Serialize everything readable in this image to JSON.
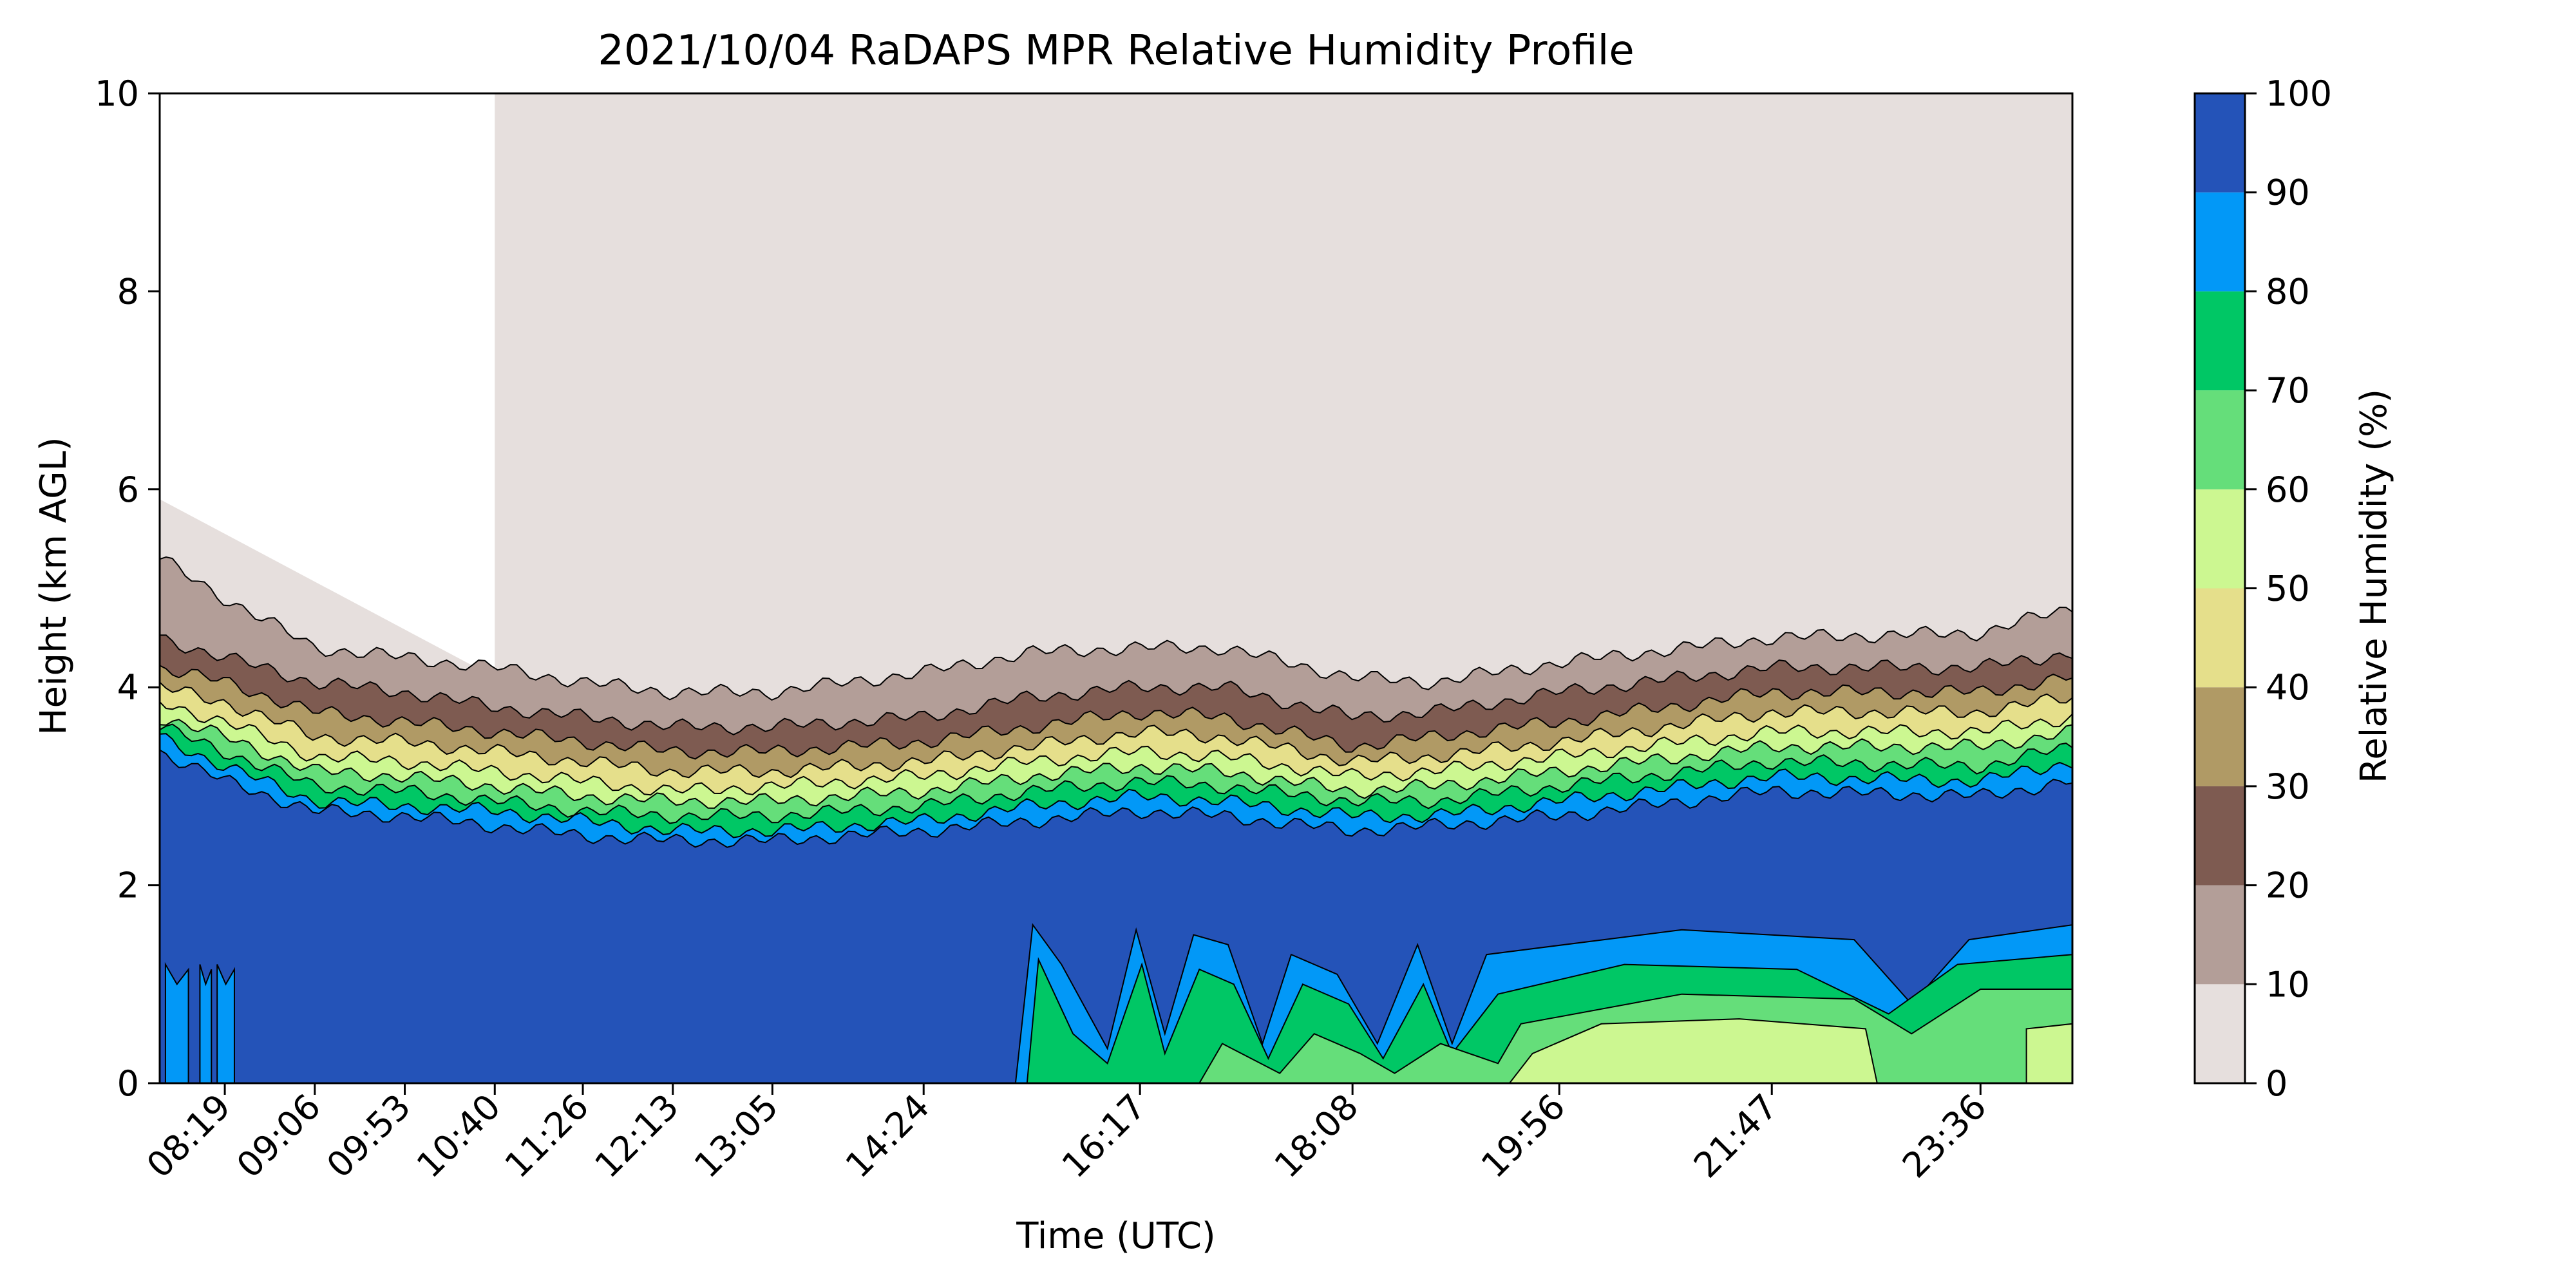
{
  "chart_data": {
    "type": "contourf",
    "title": "2021/10/04 RaDAPS MPR Relative Humidity Profile",
    "xlabel": "Time (UTC)",
    "ylabel": "Height (km AGL)",
    "xlim": [
      "07:45",
      "24:24"
    ],
    "ylim": [
      0,
      10
    ],
    "x_ticks": [
      "08:19",
      "09:06",
      "09:53",
      "10:40",
      "11:26",
      "12:13",
      "13:05",
      "14:24",
      "16:17",
      "18:08",
      "19:56",
      "21:47",
      "23:36"
    ],
    "y_ticks": [
      0,
      2,
      4,
      6,
      8,
      10
    ],
    "colorbar": {
      "label": "Relative Humidity (%)",
      "ticks": [
        0,
        10,
        20,
        30,
        40,
        50,
        60,
        70,
        80,
        90,
        100
      ],
      "levels": [
        {
          "range": [
            0,
            10
          ],
          "color": "#e6dfdd"
        },
        {
          "range": [
            10,
            20
          ],
          "color": "#b39e98"
        },
        {
          "range": [
            20,
            30
          ],
          "color": "#7e5b51"
        },
        {
          "range": [
            30,
            40
          ],
          "color": "#b09a65"
        },
        {
          "range": [
            40,
            50
          ],
          "color": "#e5df8b"
        },
        {
          "range": [
            50,
            60
          ],
          "color": "#ccf791"
        },
        {
          "range": [
            60,
            70
          ],
          "color": "#65de7a"
        },
        {
          "range": [
            70,
            80
          ],
          "color": "#00c765"
        },
        {
          "range": [
            80,
            90
          ],
          "color": "#0298f7"
        },
        {
          "range": [
            90,
            100
          ],
          "color": "#2453b8"
        }
      ]
    },
    "upper_boundaries_km": {
      "note_times": [
        "07:45",
        "08:19",
        "09:06",
        "09:53",
        "10:40",
        "11:26",
        "12:13",
        "13:05",
        "14:24",
        "15:20",
        "16:17",
        "17:00",
        "18:08",
        "18:50",
        "19:56",
        "21:47",
        "23:36",
        "24:24"
      ],
      "rh10": [
        5.3,
        4.9,
        4.4,
        4.3,
        4.2,
        4.05,
        3.95,
        3.95,
        4.15,
        4.35,
        4.4,
        4.4,
        4.1,
        4.05,
        4.25,
        4.5,
        4.55,
        4.8
      ],
      "rh20": [
        4.5,
        4.3,
        4.05,
        3.95,
        3.8,
        3.7,
        3.6,
        3.6,
        3.7,
        3.9,
        4.0,
        4.0,
        3.7,
        3.75,
        3.95,
        4.2,
        4.2,
        4.35
      ],
      "rh30": [
        4.2,
        4.05,
        3.75,
        3.65,
        3.55,
        3.45,
        3.35,
        3.35,
        3.45,
        3.6,
        3.75,
        3.7,
        3.4,
        3.5,
        3.65,
        3.95,
        3.95,
        4.1
      ],
      "rh40": [
        4.0,
        3.85,
        3.5,
        3.45,
        3.35,
        3.25,
        3.15,
        3.15,
        3.25,
        3.4,
        3.55,
        3.5,
        3.25,
        3.3,
        3.45,
        3.75,
        3.75,
        3.9
      ],
      "rh50": [
        3.85,
        3.65,
        3.3,
        3.25,
        3.15,
        3.05,
        2.95,
        3.0,
        3.1,
        3.25,
        3.35,
        3.3,
        3.1,
        3.15,
        3.3,
        3.55,
        3.55,
        3.7
      ],
      "rh60": [
        3.7,
        3.5,
        3.15,
        3.1,
        3.0,
        2.9,
        2.85,
        2.85,
        2.95,
        3.1,
        3.2,
        3.15,
        2.95,
        3.0,
        3.15,
        3.4,
        3.4,
        3.55
      ],
      "rh70": [
        3.6,
        3.35,
        3.0,
        2.95,
        2.85,
        2.75,
        2.7,
        2.7,
        2.8,
        2.95,
        3.05,
        3.0,
        2.85,
        2.85,
        3.0,
        3.25,
        3.2,
        3.4
      ],
      "rh80": [
        3.5,
        3.2,
        2.85,
        2.8,
        2.75,
        2.65,
        2.55,
        2.55,
        2.65,
        2.8,
        2.9,
        2.85,
        2.7,
        2.7,
        2.85,
        3.1,
        3.05,
        3.25
      ],
      "rh90": [
        3.35,
        3.05,
        2.75,
        2.7,
        2.6,
        2.5,
        2.45,
        2.45,
        2.55,
        2.65,
        2.75,
        2.7,
        2.55,
        2.6,
        2.7,
        2.95,
        2.9,
        3.05
      ]
    }
  }
}
